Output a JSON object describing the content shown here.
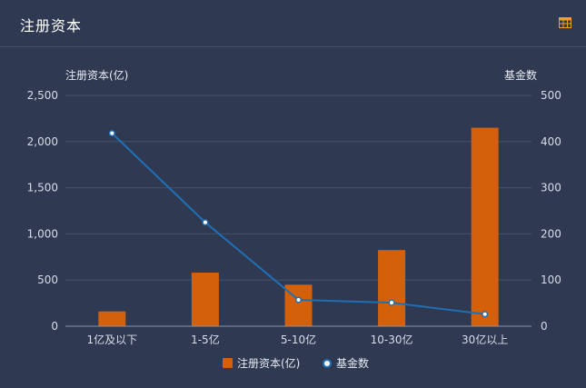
{
  "header": {
    "title": "注册资本",
    "table_icon": "table-icon",
    "accent_color": "#f0a020"
  },
  "chart_data": {
    "type": "bar",
    "categories": [
      "1亿及以下",
      "1-5亿",
      "5-10亿",
      "10-30亿",
      "30亿以上"
    ],
    "series": [
      {
        "name": "注册资本(亿)",
        "type": "bar",
        "axis": "left",
        "color": "#d4600a",
        "values": [
          160,
          580,
          450,
          825,
          2150
        ]
      },
      {
        "name": "基金数",
        "type": "line",
        "axis": "right",
        "color": "#1f6fb5",
        "values": [
          418,
          225,
          57,
          51,
          26
        ]
      }
    ],
    "yaxis_left": {
      "label": "注册资本(亿)",
      "ylim": [
        0,
        2500
      ],
      "ticks": [
        0,
        500,
        1000,
        1500,
        2000,
        2500
      ],
      "tick_labels": [
        "0",
        "500",
        "1,000",
        "1,500",
        "2,000",
        "2,500"
      ]
    },
    "yaxis_right": {
      "label": "基金数",
      "ylim": [
        0,
        500
      ],
      "ticks": [
        0,
        100,
        200,
        300,
        400,
        500
      ],
      "tick_labels": [
        "0",
        "100",
        "200",
        "300",
        "400",
        "500"
      ]
    },
    "grid": true,
    "legend_position": "bottom-center"
  }
}
